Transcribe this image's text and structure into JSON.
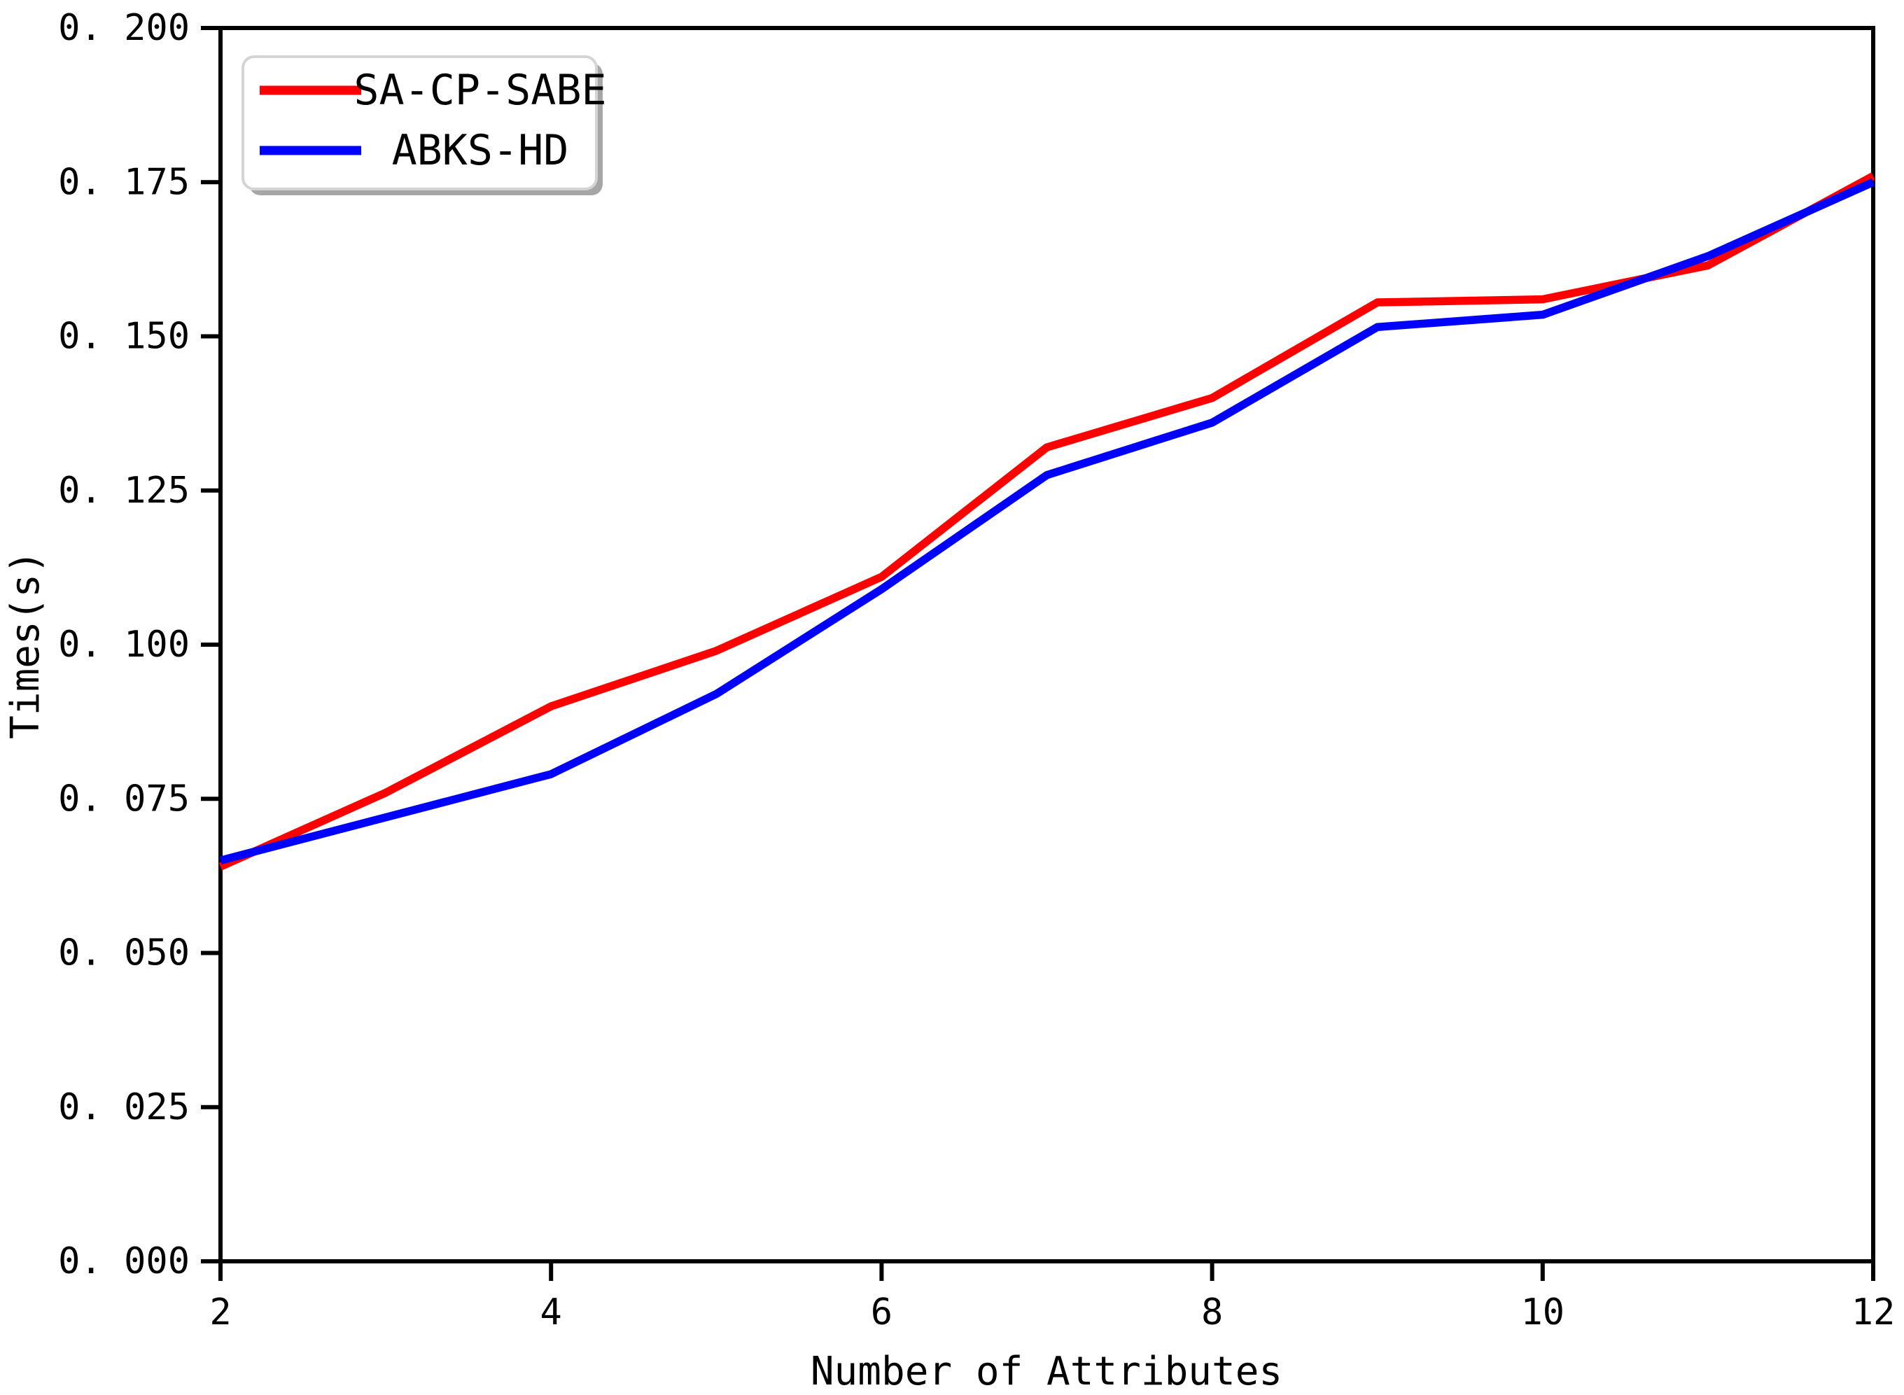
{
  "figure": {
    "background": "#ffffff"
  },
  "chart_data": {
    "type": "line",
    "title": "",
    "xlabel": "Number of Attributes",
    "ylabel": "Times(s)",
    "x": [
      2,
      3,
      4,
      5,
      6,
      7,
      8,
      9,
      10,
      11,
      12
    ],
    "series": [
      {
        "name": "SA-CP-SABE",
        "color": "#ff0000",
        "values": [
          0.064,
          0.076,
          0.09,
          0.099,
          0.111,
          0.132,
          0.14,
          0.1555,
          0.156,
          0.1615,
          0.176
        ]
      },
      {
        "name": "ABKS-HD",
        "color": "#0000ff",
        "values": [
          0.065,
          0.072,
          0.079,
          0.092,
          0.109,
          0.1275,
          0.136,
          0.1515,
          0.1535,
          0.163,
          0.175
        ]
      }
    ],
    "xlim": [
      2,
      12
    ],
    "ylim": [
      0.0,
      0.2
    ],
    "xticks": [
      {
        "value": 2,
        "label": "2"
      },
      {
        "value": 4,
        "label": "4"
      },
      {
        "value": 6,
        "label": "6"
      },
      {
        "value": 8,
        "label": "8"
      },
      {
        "value": 10,
        "label": "10"
      },
      {
        "value": 12,
        "label": "12"
      }
    ],
    "yticks": [
      {
        "value": 0.0,
        "label": "0. 000"
      },
      {
        "value": 0.025,
        "label": "0. 025"
      },
      {
        "value": 0.05,
        "label": "0. 050"
      },
      {
        "value": 0.075,
        "label": "0. 075"
      },
      {
        "value": 0.1,
        "label": "0. 100"
      },
      {
        "value": 0.125,
        "label": "0. 125"
      },
      {
        "value": 0.15,
        "label": "0. 150"
      },
      {
        "value": 0.175,
        "label": "0. 175"
      },
      {
        "value": 0.2,
        "label": "0. 200"
      }
    ],
    "grid": false,
    "legend": {
      "position": "upper-left",
      "shadow": true,
      "border_color": "#d4d4d4",
      "shadow_color": "#a6a6a6",
      "entries": [
        "SA-CP-SABE",
        "ABKS-HD"
      ]
    },
    "frame_color": "#000000"
  }
}
